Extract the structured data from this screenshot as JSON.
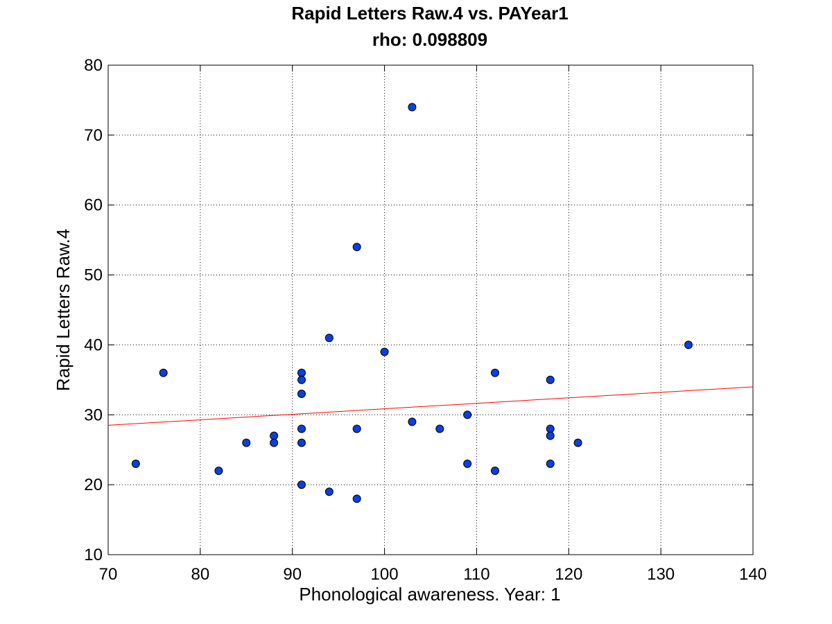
{
  "chart_data": {
    "type": "scatter",
    "title": "Rapid Letters Raw.4 vs. PAYear1",
    "subtitle": "rho: 0.098809",
    "xlabel": "Phonological awareness. Year: 1",
    "ylabel": "Rapid Letters Raw.4",
    "xlim": [
      70,
      140
    ],
    "ylim": [
      10,
      80
    ],
    "xticks": [
      "70",
      "80",
      "90",
      "100",
      "110",
      "120",
      "130",
      "140"
    ],
    "yticks": [
      "10",
      "20",
      "30",
      "40",
      "50",
      "60",
      "70",
      "80"
    ],
    "grid": true,
    "grid_style": "dotted",
    "marker_color": "#0a3fe0",
    "marker_edge_color": "#000000",
    "fit_line_color": "#ff0000",
    "points": [
      {
        "x": 73,
        "y": 23
      },
      {
        "x": 76,
        "y": 36
      },
      {
        "x": 82,
        "y": 22
      },
      {
        "x": 85,
        "y": 26
      },
      {
        "x": 88,
        "y": 27
      },
      {
        "x": 88,
        "y": 26
      },
      {
        "x": 91,
        "y": 36
      },
      {
        "x": 91,
        "y": 35
      },
      {
        "x": 91,
        "y": 33
      },
      {
        "x": 91,
        "y": 28
      },
      {
        "x": 91,
        "y": 26
      },
      {
        "x": 91,
        "y": 20
      },
      {
        "x": 94,
        "y": 41
      },
      {
        "x": 94,
        "y": 19
      },
      {
        "x": 97,
        "y": 54
      },
      {
        "x": 97,
        "y": 28
      },
      {
        "x": 97,
        "y": 18
      },
      {
        "x": 100,
        "y": 39
      },
      {
        "x": 103,
        "y": 74
      },
      {
        "x": 103,
        "y": 29
      },
      {
        "x": 106,
        "y": 28
      },
      {
        "x": 109,
        "y": 30
      },
      {
        "x": 109,
        "y": 23
      },
      {
        "x": 112,
        "y": 36
      },
      {
        "x": 112,
        "y": 22
      },
      {
        "x": 118,
        "y": 35
      },
      {
        "x": 118,
        "y": 28
      },
      {
        "x": 118,
        "y": 27
      },
      {
        "x": 118,
        "y": 23
      },
      {
        "x": 121,
        "y": 26
      },
      {
        "x": 133,
        "y": 40
      }
    ],
    "fit_line": {
      "x": [
        70,
        140
      ],
      "y": [
        28.5,
        34
      ]
    }
  }
}
